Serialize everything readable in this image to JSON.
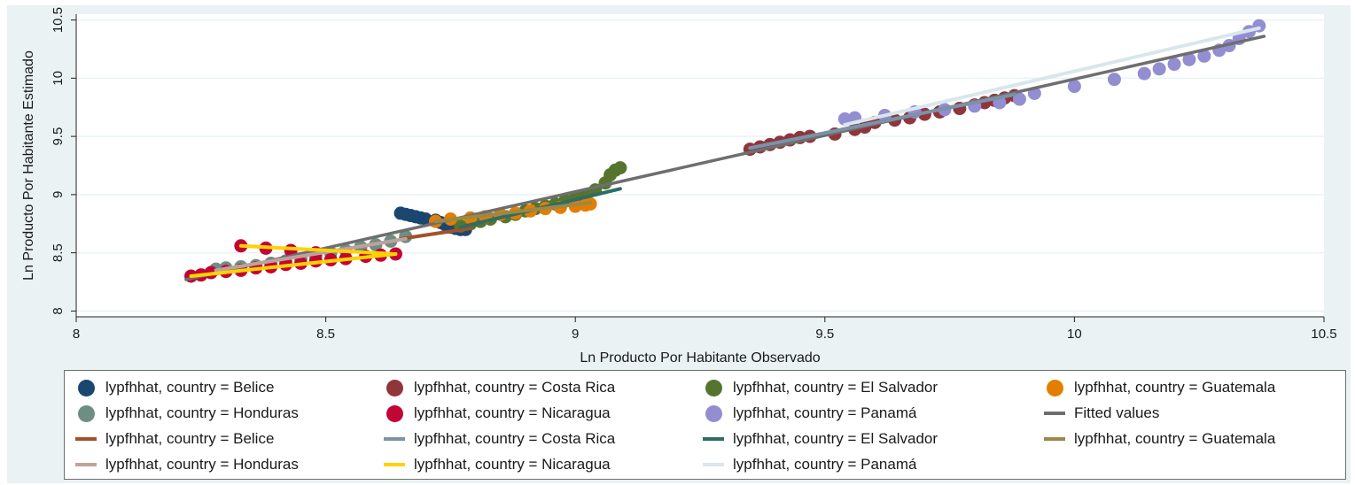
{
  "chart_data": {
    "type": "scatter",
    "xlabel": "Ln Producto Por Habitante Observado",
    "ylabel": "Ln Producto Por Habitante Estimado",
    "xlim": [
      8,
      10.5
    ],
    "ylim": [
      7.95,
      10.55
    ],
    "xticks": [
      "8",
      "8.5",
      "9",
      "9.5",
      "10",
      "10.5"
    ],
    "yticks": [
      "8",
      "8.5",
      "9",
      "9.5",
      "10",
      "10.5"
    ],
    "grid": true,
    "legend_placement": "bottom",
    "scatter_series": [
      {
        "label": "lypfhhat, country = Belice",
        "color": "#1a476f",
        "points": [
          [
            8.65,
            8.84
          ],
          [
            8.66,
            8.83
          ],
          [
            8.67,
            8.82
          ],
          [
            8.68,
            8.81
          ],
          [
            8.69,
            8.8
          ],
          [
            8.7,
            8.79
          ],
          [
            8.72,
            8.78
          ],
          [
            8.73,
            8.76
          ],
          [
            8.74,
            8.74
          ],
          [
            8.75,
            8.72
          ],
          [
            8.76,
            8.71
          ],
          [
            8.77,
            8.7
          ],
          [
            8.78,
            8.7
          ]
        ]
      },
      {
        "label": "lypfhhat, country = Costa Rica",
        "color": "#90353b",
        "points": [
          [
            9.35,
            9.39
          ],
          [
            9.37,
            9.41
          ],
          [
            9.39,
            9.43
          ],
          [
            9.41,
            9.45
          ],
          [
            9.43,
            9.47
          ],
          [
            9.45,
            9.49
          ],
          [
            9.47,
            9.5
          ],
          [
            9.52,
            9.52
          ],
          [
            9.56,
            9.56
          ],
          [
            9.58,
            9.58
          ],
          [
            9.6,
            9.62
          ],
          [
            9.64,
            9.64
          ],
          [
            9.67,
            9.66
          ],
          [
            9.7,
            9.69
          ],
          [
            9.73,
            9.71
          ],
          [
            9.77,
            9.74
          ],
          [
            9.8,
            9.77
          ],
          [
            9.82,
            9.79
          ],
          [
            9.84,
            9.81
          ],
          [
            9.86,
            9.83
          ],
          [
            9.88,
            9.85
          ]
        ]
      },
      {
        "label": "lypfhhat, country = El Salvador",
        "color": "#55752f",
        "points": [
          [
            8.77,
            8.73
          ],
          [
            8.79,
            8.75
          ],
          [
            8.81,
            8.77
          ],
          [
            8.83,
            8.79
          ],
          [
            8.86,
            8.81
          ],
          [
            8.88,
            8.83
          ],
          [
            8.9,
            8.86
          ],
          [
            8.92,
            8.88
          ],
          [
            8.94,
            8.9
          ],
          [
            8.96,
            8.92
          ],
          [
            8.98,
            8.95
          ],
          [
            9.0,
            8.97
          ],
          [
            9.02,
            9.0
          ],
          [
            9.04,
            9.04
          ],
          [
            9.06,
            9.1
          ],
          [
            9.07,
            9.17
          ],
          [
            9.08,
            9.21
          ],
          [
            9.09,
            9.23
          ]
        ]
      },
      {
        "label": "lypfhhat, country = Guatemala",
        "color": "#e37e00",
        "points": [
          [
            8.72,
            8.77
          ],
          [
            8.75,
            8.79
          ],
          [
            8.79,
            8.8
          ],
          [
            8.82,
            8.81
          ],
          [
            8.85,
            8.83
          ],
          [
            8.88,
            8.84
          ],
          [
            8.91,
            8.86
          ],
          [
            8.94,
            8.88
          ],
          [
            8.97,
            8.89
          ],
          [
            9.0,
            8.9
          ],
          [
            9.02,
            8.91
          ],
          [
            9.03,
            8.92
          ]
        ]
      },
      {
        "label": "lypfhhat, country = Honduras",
        "color": "#6e8e84",
        "points": [
          [
            8.28,
            8.36
          ],
          [
            8.3,
            8.37
          ],
          [
            8.33,
            8.38
          ],
          [
            8.36,
            8.39
          ],
          [
            8.39,
            8.41
          ],
          [
            8.42,
            8.43
          ],
          [
            8.45,
            8.45
          ],
          [
            8.48,
            8.47
          ],
          [
            8.51,
            8.5
          ],
          [
            8.54,
            8.52
          ],
          [
            8.57,
            8.55
          ],
          [
            8.6,
            8.57
          ],
          [
            8.63,
            8.6
          ],
          [
            8.66,
            8.64
          ]
        ]
      },
      {
        "label": "lypfhhat, country = Nicaragua",
        "color": "#c10534",
        "points": [
          [
            8.23,
            8.3
          ],
          [
            8.25,
            8.31
          ],
          [
            8.27,
            8.33
          ],
          [
            8.3,
            8.34
          ],
          [
            8.33,
            8.35
          ],
          [
            8.36,
            8.37
          ],
          [
            8.39,
            8.38
          ],
          [
            8.42,
            8.4
          ],
          [
            8.45,
            8.41
          ],
          [
            8.48,
            8.43
          ],
          [
            8.51,
            8.44
          ],
          [
            8.54,
            8.45
          ],
          [
            8.58,
            8.47
          ],
          [
            8.61,
            8.48
          ],
          [
            8.64,
            8.49
          ],
          [
            8.33,
            8.56
          ],
          [
            8.38,
            8.54
          ],
          [
            8.43,
            8.52
          ],
          [
            8.48,
            8.5
          ]
        ]
      },
      {
        "label": "lypfhhat, country = Panamá",
        "color": "#938dd2",
        "points": [
          [
            9.54,
            9.65
          ],
          [
            9.56,
            9.66
          ],
          [
            9.62,
            9.68
          ],
          [
            9.68,
            9.71
          ],
          [
            9.74,
            9.73
          ],
          [
            9.8,
            9.76
          ],
          [
            9.85,
            9.79
          ],
          [
            9.89,
            9.82
          ],
          [
            9.92,
            9.87
          ],
          [
            10.0,
            9.93
          ],
          [
            10.08,
            9.99
          ],
          [
            10.14,
            10.04
          ],
          [
            10.17,
            10.08
          ],
          [
            10.2,
            10.12
          ],
          [
            10.23,
            10.16
          ],
          [
            10.26,
            10.19
          ],
          [
            10.29,
            10.24
          ],
          [
            10.31,
            10.28
          ],
          [
            10.33,
            10.34
          ],
          [
            10.35,
            10.4
          ],
          [
            10.37,
            10.45
          ]
        ]
      }
    ],
    "fitted_series": [
      {
        "label": "Fitted values",
        "color": "#6e6e6e",
        "x": [
          8.22,
          10.38
        ],
        "y": [
          8.27,
          10.36
        ]
      },
      {
        "label": "lypfhhat, country = Belice",
        "color": "#a0522d",
        "x": [
          8.65,
          8.79
        ],
        "y": [
          8.62,
          8.71
        ]
      },
      {
        "label": "lypfhhat, country = Costa Rica",
        "color": "#7b92a8",
        "x": [
          9.35,
          9.88
        ],
        "y": [
          9.4,
          9.86
        ]
      },
      {
        "label": "lypfhhat, country = El Salvador",
        "color": "#2d6d66",
        "x": [
          8.77,
          9.09
        ],
        "y": [
          8.72,
          9.05
        ]
      },
      {
        "label": "lypfhhat, country = Guatemala",
        "color": "#9c8847",
        "x": [
          8.72,
          9.03
        ],
        "y": [
          8.77,
          8.93
        ]
      },
      {
        "label": "lypfhhat, country = Honduras",
        "color": "#bfa19c",
        "x": [
          8.28,
          8.66
        ],
        "y": [
          8.35,
          8.62
        ]
      },
      {
        "label": "lypfhhat, country = Nicaragua",
        "color": "#ffd200",
        "x": [
          8.23,
          8.64
        ],
        "y": [
          8.3,
          8.49
        ]
      },
      {
        "label": "lypfhhat, country = Nicaragua",
        "color": "#ffd200",
        "x": [
          8.33,
          8.64
        ],
        "y": [
          8.56,
          8.49
        ]
      },
      {
        "label": "lypfhhat, country = Panamá",
        "color": "#d9e6eb",
        "x": [
          9.54,
          10.37
        ],
        "y": [
          9.6,
          10.43
        ]
      }
    ]
  },
  "legend": {
    "items": [
      {
        "kind": "dot",
        "label": "lypfhhat, country = Belice",
        "color": "#1a476f"
      },
      {
        "kind": "dot",
        "label": "lypfhhat, country = Costa Rica",
        "color": "#90353b"
      },
      {
        "kind": "dot",
        "label": "lypfhhat, country = El Salvador",
        "color": "#55752f"
      },
      {
        "kind": "dot",
        "label": "lypfhhat, country = Guatemala",
        "color": "#e37e00"
      },
      {
        "kind": "dot",
        "label": "lypfhhat, country = Honduras",
        "color": "#6e8e84"
      },
      {
        "kind": "dot",
        "label": "lypfhhat, country = Nicaragua",
        "color": "#c10534"
      },
      {
        "kind": "dot",
        "label": "lypfhhat, country = Panamá",
        "color": "#938dd2"
      },
      {
        "kind": "line",
        "label": "Fitted values",
        "color": "#6e6e6e"
      },
      {
        "kind": "line",
        "label": "lypfhhat, country = Belice",
        "color": "#a0522d"
      },
      {
        "kind": "line",
        "label": "lypfhhat, country = Costa Rica",
        "color": "#7b92a8"
      },
      {
        "kind": "line",
        "label": "lypfhhat, country = El Salvador",
        "color": "#2d6d66"
      },
      {
        "kind": "line",
        "label": "lypfhhat, country = Guatemala",
        "color": "#9c8847"
      },
      {
        "kind": "line",
        "label": "lypfhhat, country = Honduras",
        "color": "#bfa19c"
      },
      {
        "kind": "line",
        "label": "lypfhhat, country = Nicaragua",
        "color": "#ffd200"
      },
      {
        "kind": "line",
        "label": "lypfhhat, country = Panamá",
        "color": "#d9e6eb"
      }
    ]
  }
}
